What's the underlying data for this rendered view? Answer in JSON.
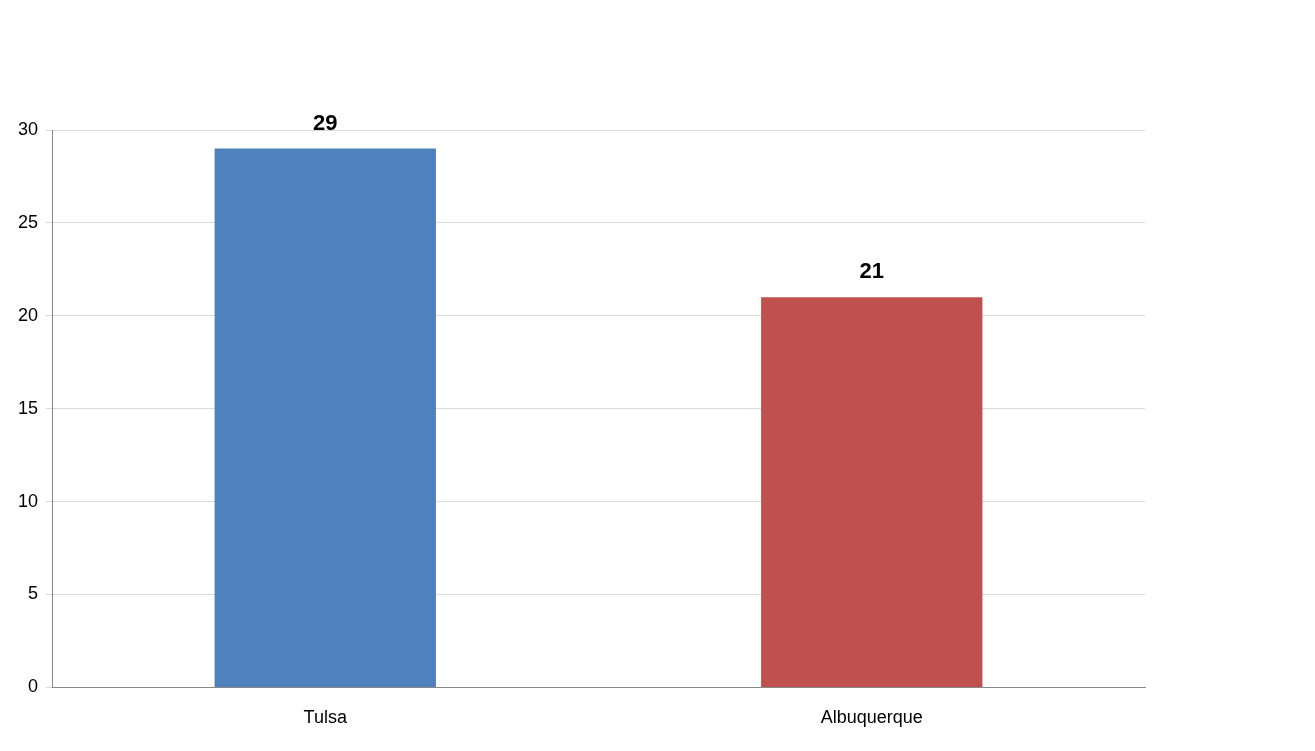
{
  "chart_data": {
    "type": "bar",
    "categories": [
      "Tulsa",
      "Albuquerque"
    ],
    "values": [
      29,
      21
    ],
    "colors": [
      "#4f81bd",
      "#c0504d"
    ],
    "ylim": [
      0,
      30
    ],
    "yticks": [
      0,
      5,
      10,
      15,
      20,
      25,
      30
    ],
    "grid": "y",
    "data_labels": true,
    "legend": false
  }
}
